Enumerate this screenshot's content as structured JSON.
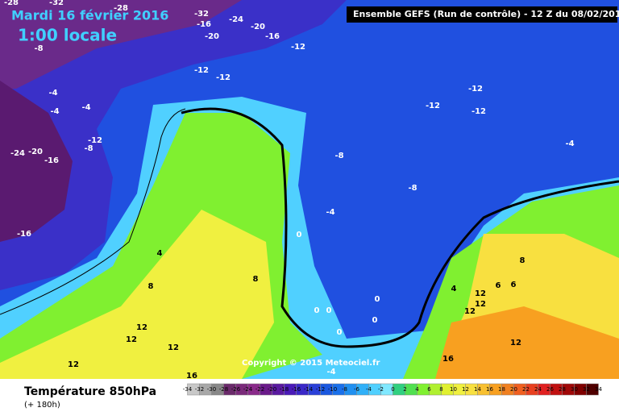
{
  "header": {
    "date": "Mardi 16 février 2016",
    "time": "1:00 locale",
    "run": "Ensemble GEFS  (Run de contrôle)  -  12 Z du 08/02/2016"
  },
  "copyright": "Copyright © 2015 Meteociel.fr",
  "footer": {
    "title": "Température 850hPa",
    "lead": "(+ 180h)"
  },
  "scale": {
    "labels": [
      -34,
      -32,
      -30,
      -28,
      -26,
      -24,
      -22,
      -20,
      -18,
      -16,
      -14,
      -12,
      -10,
      -8,
      -6,
      -4,
      -2,
      0,
      2,
      4,
      6,
      8,
      10,
      12,
      14,
      16,
      18,
      20,
      22,
      24,
      26,
      28,
      30,
      32,
      34
    ],
    "colors": [
      "#c8c8c8",
      "#a8a8a8",
      "#888888",
      "#6a2a6a",
      "#7a2a7a",
      "#8a2a8a",
      "#6a1a8a",
      "#5a1aa0",
      "#4a1ab8",
      "#3a28c8",
      "#2a40d8",
      "#1a58e0",
      "#1a70ea",
      "#2090f0",
      "#30b0f8",
      "#50d0ff",
      "#80e8ff",
      "#30d080",
      "#50e050",
      "#80f030",
      "#b0f030",
      "#e0f030",
      "#f0f040",
      "#f8e040",
      "#f8c030",
      "#f8a020",
      "#f08020",
      "#f06020",
      "#e84020",
      "#e02020",
      "#c01010",
      "#a00808",
      "#800000",
      "#500000"
    ]
  },
  "contours": [
    -28,
    -32,
    -28,
    -32,
    -24,
    -16,
    -20,
    -20,
    -16,
    -12,
    -8,
    -12,
    -12,
    -4,
    -4,
    -4,
    -12,
    -8,
    -24,
    -20,
    -16,
    -12,
    -12,
    -12,
    -4,
    -8,
    -8,
    -4,
    -16,
    0,
    4,
    8,
    8,
    0,
    0,
    0,
    0,
    0,
    12,
    12,
    12,
    12,
    4,
    12,
    12,
    12,
    8,
    6,
    6,
    12,
    16,
    16,
    -4
  ]
}
